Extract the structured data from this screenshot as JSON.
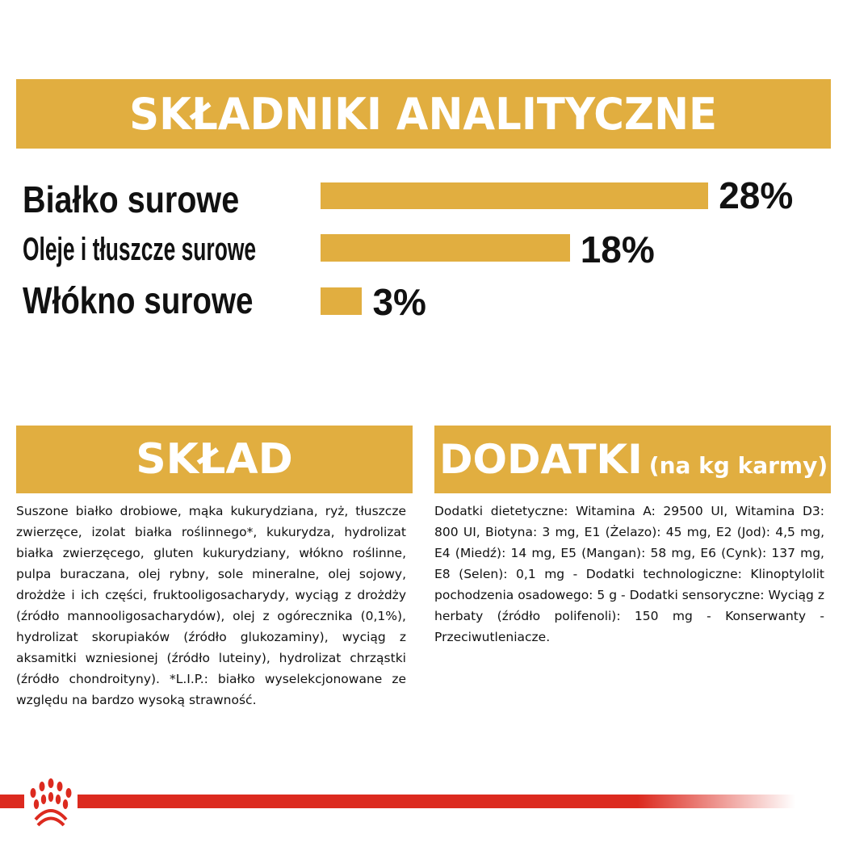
{
  "header": {
    "title": "SKŁADNIKI ANALITYCZNE"
  },
  "chart_data": {
    "type": "bar",
    "orientation": "horizontal",
    "categories": [
      "Białko surowe",
      "Oleje i tłuszcze surowe",
      "Włókno surowe"
    ],
    "values": [
      28,
      18,
      3
    ],
    "data_labels": [
      "28%",
      "18%",
      "3%"
    ],
    "unit": "%",
    "color": "#E1AE40"
  },
  "sklad": {
    "title": "SKŁAD",
    "text": "Suszone białko drobiowe, mąka kukurydziana, ryż, tłuszcze zwierzęce, izolat białka roślinnego*, kukurydza, hydrolizat białka zwierzęcego, gluten kukurydziany, włókno roślinne, pulpa buraczana, olej rybny, sole mineralne, olej sojowy, drożdże i ich części, fruktooligosacharydy, wyciąg z drożdży (źródło mannooligosacharydów), olej z ogórecznika (0,1%), hydrolizat skorupiaków (źródło glukozaminy), wyciąg z aksamitki wzniesionej (źródło luteiny), hydrolizat chrząstki (źródło chondroityny). *L.I.P.: białko wyselekcjonowane ze względu na bardzo wysoką strawność."
  },
  "dodatki": {
    "title": "DODATKI",
    "subtitle": "(na kg karmy)",
    "text": "Dodatki dietetyczne: Witamina A: 29500 UI, Witamina D3: 800 UI, Biotyna: 3 mg, E1 (Żelazo): 45 mg, E2 (Jod): 4,5 mg, E4 (Miedź): 14 mg, E5 (Mangan): 58 mg, E6 (Cynk): 137 mg, E8 (Selen): 0,1 mg - Dodatki technologiczne: Klinoptylolit pochodzenia osadowego: 5 g - Dodatki sensoryczne: Wyciąg z herbaty (źródło polifenoli): 150 mg - Konserwanty - Przeciwutleniacze."
  },
  "footer": {
    "logo": "royal-canin-crown-logo",
    "color": "#DC2A1F"
  }
}
